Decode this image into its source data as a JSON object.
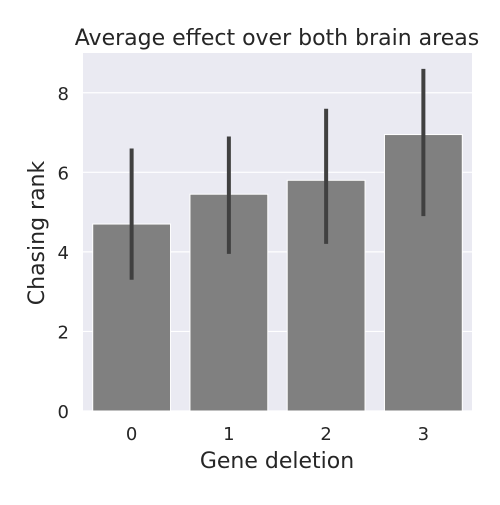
{
  "chart_data": {
    "type": "bar",
    "title": "Average effect over both brain areas",
    "xlabel": "Gene deletion",
    "ylabel": "Chasing rank",
    "categories": [
      "0",
      "1",
      "2",
      "3"
    ],
    "values": [
      4.7,
      5.45,
      5.8,
      6.95
    ],
    "error_low": [
      3.3,
      3.95,
      4.2,
      4.9
    ],
    "error_high": [
      6.6,
      6.9,
      7.6,
      8.6
    ],
    "ylim": [
      0,
      9
    ],
    "yticks": [
      0,
      2,
      4,
      6,
      8
    ],
    "grid": true,
    "colors": {
      "background": "#eaeaf2",
      "bar": "#808080",
      "errorbar": "#404040",
      "grid": "#ffffff"
    }
  }
}
